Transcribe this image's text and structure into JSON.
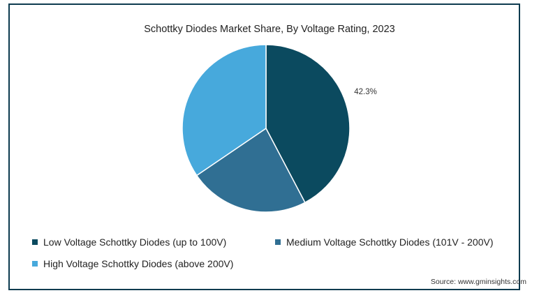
{
  "chart_data": {
    "type": "pie",
    "title": "Schottky Diodes Market Share, By Voltage Rating, 2023",
    "categories": [
      "Low Voltage Schottky Diodes (up to 100V)",
      "Medium Voltage Schottky Diodes (101V - 200V)",
      "High Voltage Schottky Diodes (above 200V)"
    ],
    "values": [
      42.3,
      23.2,
      34.5
    ],
    "colors": [
      "#0b4a5f",
      "#306f93",
      "#47a9dc"
    ],
    "data_labels": [
      "42.3%",
      "",
      ""
    ],
    "legend_position": "bottom"
  },
  "source": "Source: www.gminsights.com"
}
